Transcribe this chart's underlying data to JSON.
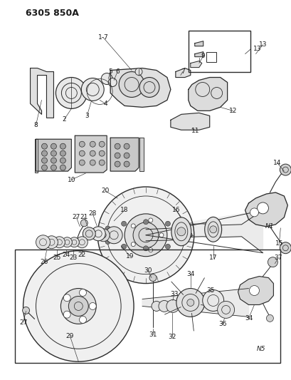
{
  "title": "6305 850A",
  "bg_color": "#ffffff",
  "line_color": "#2a2a2a",
  "label_color": "#1a1a1a",
  "fig_width": 4.1,
  "fig_height": 5.33,
  "dpi": 100
}
